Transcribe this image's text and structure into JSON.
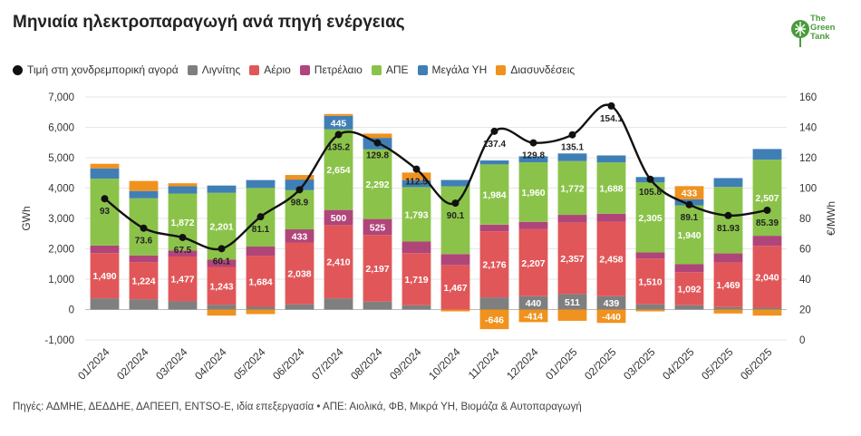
{
  "title": "Μηνιαία ηλεκτροπαραγωγή ανά πηγή ενέργειας",
  "logo": {
    "text": "The Green Tank",
    "lines": [
      "The",
      "Green",
      "Tank"
    ]
  },
  "source_note": "Πηγές: ΑΔΜΗΕ, ΔΕΔΔΗΕ, ΔΑΠΕΕΠ, ENTSO-E, ιδία επεξεργασία • ΑΠΕ: Αιολικά, ΦΒ, Μικρά ΥΗ, Βιομάζα & Αυτοπαραγωγή",
  "colors": {
    "price": "#111111",
    "lignite": "#7f7f7f",
    "gas": "#e15759",
    "oil": "#b0457a",
    "res": "#8bc34a",
    "hydro": "#3f7fb5",
    "interconnections": "#f0921e"
  },
  "chart_data": {
    "type": "bar",
    "stacked": true,
    "categories": [
      "01/2024",
      "02/2024",
      "03/2024",
      "04/2024",
      "05/2024",
      "06/2024",
      "07/2024",
      "08/2024",
      "09/2024",
      "10/2024",
      "11/2024",
      "12/2024",
      "01/2025",
      "02/2025",
      "03/2025",
      "04/2025",
      "05/2025",
      "06/2025"
    ],
    "ylabel": "GWh",
    "y2label": "€/MWh",
    "ylim": [
      -1000,
      7000
    ],
    "yticks": [
      "-1,000",
      "0",
      "1,000",
      "2,000",
      "3,000",
      "4,000",
      "5,000",
      "6,000",
      "7,000"
    ],
    "y2lim": [
      0,
      160
    ],
    "y2ticks": [
      "0",
      "20",
      "40",
      "60",
      "80",
      "100",
      "120",
      "140",
      "160"
    ],
    "grid": true,
    "legend_position": "top-left",
    "series": [
      {
        "name": "Λιγνίτης",
        "key": "lignite",
        "values": [
          370,
          340,
          270,
          160,
          90,
          170,
          370,
          260,
          140,
          0,
          400,
          440,
          511,
          439,
          170,
          140,
          80,
          60
        ],
        "labels": [
          "",
          "",
          "",
          "",
          "",
          "",
          "",
          "",
          "",
          "",
          "",
          "440",
          "511",
          "439",
          "",
          "",
          "",
          ""
        ]
      },
      {
        "name": "Αέριο",
        "key": "gas",
        "values": [
          1490,
          1224,
          1477,
          1243,
          1684,
          2038,
          2410,
          2197,
          1719,
          1467,
          2176,
          2207,
          2357,
          2458,
          1510,
          1092,
          1469,
          2040
        ],
        "labels": [
          "1,490",
          "1,224",
          "1,477",
          "1,243",
          "1,684",
          "2,038",
          "2,410",
          "2,197",
          "1,719",
          "1,467",
          "2,176",
          "2,207",
          "2,357",
          "2,458",
          "1,510",
          "1,092",
          "1,469",
          "2,040"
        ]
      },
      {
        "name": "Πετρέλαιο",
        "key": "oil",
        "values": [
          250,
          220,
          200,
          240,
          300,
          433,
          500,
          525,
          380,
          360,
          220,
          240,
          250,
          260,
          200,
          260,
          300,
          330
        ],
        "labels": [
          "",
          "",
          "",
          "",
          "",
          "433",
          "500",
          "525",
          "",
          "",
          "",
          "",
          "",
          "",
          "",
          "",
          "",
          ""
        ]
      },
      {
        "name": "ΑΠΕ",
        "key": "res",
        "values": [
          2200,
          1880,
          1872,
          2201,
          1930,
          1290,
          2654,
          2292,
          1793,
          2230,
          1984,
          1960,
          1772,
          1688,
          2305,
          1940,
          2190,
          2507
        ],
        "labels": [
          "",
          "",
          "1,872",
          "2,201",
          "",
          "",
          "2,654",
          "2,292",
          "1,793",
          "",
          "1,984",
          "1,960",
          "1,772",
          "1,688",
          "2,305",
          "1,940",
          "",
          "2,507"
        ]
      },
      {
        "name": "Μεγάλα ΥΗ",
        "key": "hydro",
        "values": [
          340,
          240,
          240,
          240,
          260,
          350,
          445,
          380,
          230,
          210,
          130,
          200,
          250,
          230,
          180,
          200,
          290,
          350
        ],
        "labels": [
          "",
          "",
          "",
          "",
          "",
          "",
          "445",
          "",
          "",
          "",
          "",
          "",
          "",
          "",
          "",
          "",
          "",
          ""
        ]
      },
      {
        "name": "Διασυνδέσεις",
        "key": "interconnections",
        "values": [
          150,
          330,
          100,
          -200,
          -150,
          150,
          60,
          140,
          250,
          -60,
          -646,
          -414,
          -370,
          -440,
          -60,
          433,
          -130,
          -200
        ],
        "labels": [
          "",
          "",
          "",
          "",
          "",
          "",
          "",
          "",
          "",
          "",
          "-646",
          "-414",
          "",
          "-440",
          "",
          "433",
          "",
          ""
        ]
      }
    ],
    "line": {
      "name": "Τιμή στη χονδρεμπορική αγορά",
      "axis": "y2",
      "values": [
        93,
        73.6,
        67.5,
        60.1,
        81.1,
        98.9,
        135.2,
        129.8,
        112.5,
        90.1,
        137.4,
        129.8,
        135.1,
        154.1,
        105.8,
        89.1,
        81.93,
        85.39
      ],
      "labels": [
        "93",
        "73.6",
        "67.5",
        "60.1",
        "81.1",
        "98.9",
        "135.2",
        "129.8",
        "112.5",
        "90.1",
        "137.4",
        "129.8",
        "135.1",
        "154.1",
        "105.8",
        "89.1",
        "81.93",
        "85.39"
      ]
    }
  }
}
